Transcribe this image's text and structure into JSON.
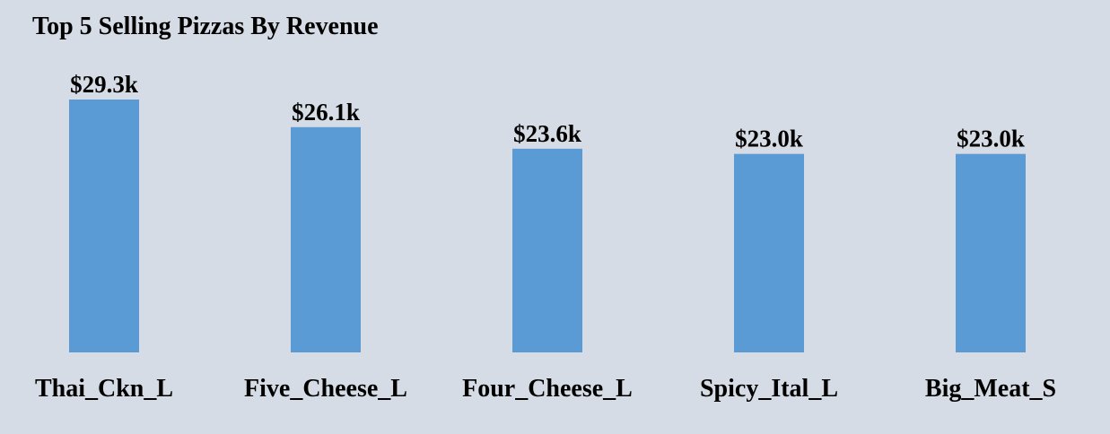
{
  "chart_data": {
    "type": "bar",
    "title": "Top 5 Selling Pizzas By Revenue",
    "categories": [
      "Thai_Ckn_L",
      "Five_Cheese_L",
      "Four_Cheese_L",
      "Spicy_Ital_L",
      "Big_Meat_S"
    ],
    "values": [
      29300,
      26100,
      23600,
      23000,
      23000
    ],
    "data_labels": [
      "$29.3k",
      "$26.1k",
      "$23.6k",
      "$23.0k",
      "$23.0k"
    ],
    "ylim": [
      0,
      29300
    ],
    "grid": false,
    "legend": "none",
    "bar_color": "#5b9bd5",
    "background_color": "#d6dce5"
  }
}
